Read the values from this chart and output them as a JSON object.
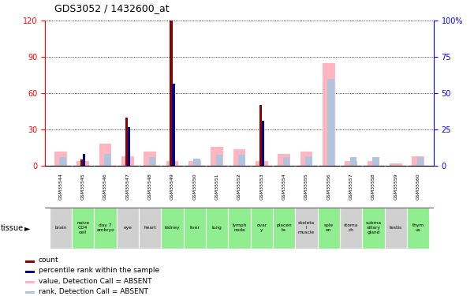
{
  "title": "GDS3052 / 1432600_at",
  "gsm_labels": [
    "GSM35544",
    "GSM35545",
    "GSM35546",
    "GSM35547",
    "GSM35548",
    "GSM35549",
    "GSM35550",
    "GSM35551",
    "GSM35552",
    "GSM35553",
    "GSM35554",
    "GSM35555",
    "GSM35556",
    "GSM35557",
    "GSM35558",
    "GSM35559",
    "GSM35560"
  ],
  "tissue_labels": [
    "brain",
    "naive\nCD4\ncell",
    "day 7\nembryo",
    "eye",
    "heart",
    "kidney",
    "liver",
    "lung",
    "lymph\nnode",
    "ovar\ny",
    "placen\nta",
    "skeleta\nl\nmuscle",
    "sple\nen",
    "stoma\nch",
    "subma\nxillary\ngland",
    "testis",
    "thym\nus"
  ],
  "tissue_green": [
    false,
    true,
    true,
    false,
    false,
    true,
    true,
    true,
    true,
    true,
    true,
    false,
    true,
    false,
    true,
    false,
    true
  ],
  "count_values": [
    0,
    5,
    0,
    40,
    0,
    120,
    0,
    0,
    0,
    50,
    0,
    0,
    0,
    0,
    0,
    0,
    0
  ],
  "rank_values": [
    0,
    10,
    0,
    32,
    0,
    68,
    0,
    0,
    0,
    37,
    0,
    0,
    0,
    0,
    0,
    0,
    0
  ],
  "absent_value": [
    12,
    4,
    18,
    8,
    12,
    4,
    4,
    16,
    14,
    4,
    10,
    12,
    85,
    4,
    4,
    2,
    8
  ],
  "absent_rank": [
    7,
    0,
    10,
    0,
    7,
    0,
    6,
    9,
    9,
    0,
    7,
    8,
    72,
    7,
    7,
    0,
    7
  ],
  "ylim_left": [
    0,
    120
  ],
  "ylim_right": [
    0,
    100
  ],
  "yticks_left": [
    0,
    30,
    60,
    90,
    120
  ],
  "yticks_right": [
    0,
    25,
    50,
    75,
    100
  ],
  "color_count": "#8B0000",
  "color_rank": "#00008B",
  "color_absent_value": "#FFB6C1",
  "color_absent_rank": "#B0C4DE",
  "bg_gsm": "#d8d8d8",
  "bg_tissue_gray": "#d0d0d0",
  "bg_tissue_green": "#90EE90",
  "legend_items": [
    {
      "color": "#8B0000",
      "label": "count"
    },
    {
      "color": "#00008B",
      "label": "percentile rank within the sample"
    },
    {
      "color": "#FFB6C1",
      "label": "value, Detection Call = ABSENT"
    },
    {
      "color": "#B0C4DE",
      "label": "rank, Detection Call = ABSENT"
    }
  ]
}
